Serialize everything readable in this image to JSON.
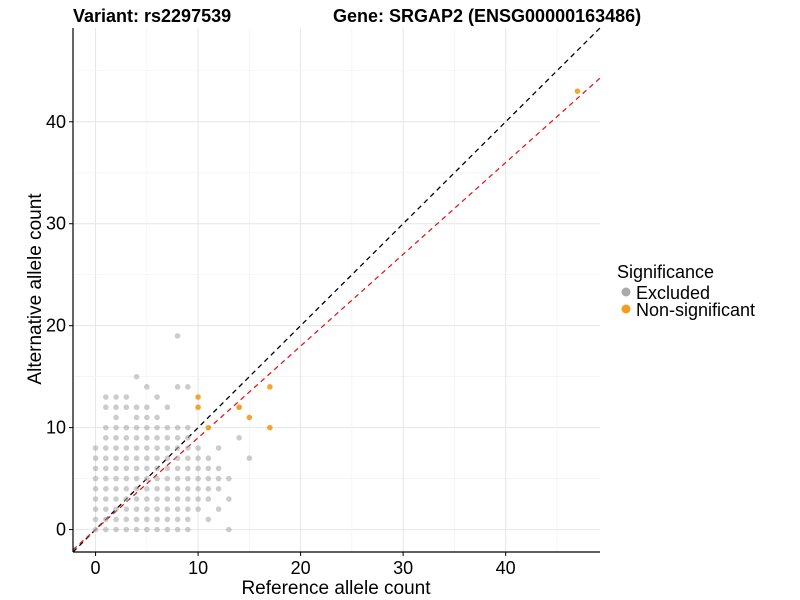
{
  "chart_data": {
    "type": "scatter",
    "title_variant": "Variant: rs2297539",
    "title_gene": "Gene: SRGAP2 (ENSG00000163486)",
    "xlabel": "Reference allele count",
    "ylabel": "Alternative allele count",
    "xlim": [
      -2.2,
      49.2
    ],
    "ylim": [
      -2.2,
      49.2
    ],
    "xticks": [
      0,
      10,
      20,
      30,
      40
    ],
    "yticks": [
      0,
      10,
      20,
      30,
      40
    ],
    "grid": true,
    "legend": {
      "title": "Significance",
      "position": "right",
      "entries": [
        {
          "label": "Excluded",
          "color": "#aaaaaa"
        },
        {
          "label": "Non-significant",
          "color": "#f39c1e"
        }
      ]
    },
    "reference_lines": [
      {
        "slope": 1.0,
        "intercept": 0,
        "color": "#000000",
        "style": "dashed"
      },
      {
        "slope": 0.9,
        "intercept": 0,
        "color": "#e41a1c",
        "style": "dashed"
      }
    ],
    "series": [
      {
        "name": "Excluded",
        "color": "#aaaaaa",
        "x": [
          0,
          0,
          0,
          0,
          0,
          0,
          0,
          0,
          0,
          1,
          1,
          1,
          1,
          1,
          1,
          1,
          1,
          1,
          1,
          1,
          1,
          1,
          2,
          2,
          2,
          2,
          2,
          2,
          2,
          2,
          2,
          2,
          2,
          2,
          2,
          2,
          3,
          3,
          3,
          3,
          3,
          3,
          3,
          3,
          3,
          3,
          3,
          3,
          3,
          4,
          4,
          4,
          4,
          4,
          4,
          4,
          4,
          4,
          4,
          4,
          4,
          4,
          4,
          5,
          5,
          5,
          5,
          5,
          5,
          5,
          5,
          5,
          5,
          5,
          5,
          5,
          5,
          6,
          6,
          6,
          6,
          6,
          6,
          6,
          6,
          6,
          6,
          6,
          6,
          6,
          7,
          7,
          7,
          7,
          7,
          7,
          7,
          7,
          7,
          7,
          7,
          7,
          8,
          8,
          8,
          8,
          8,
          8,
          8,
          8,
          8,
          8,
          8,
          8,
          8,
          9,
          9,
          9,
          9,
          9,
          9,
          9,
          9,
          9,
          9,
          9,
          9,
          10,
          10,
          10,
          10,
          10,
          10,
          10,
          11,
          11,
          11,
          11,
          11,
          11,
          12,
          12,
          12,
          12,
          12,
          13,
          13,
          13,
          14,
          14,
          15
        ],
        "y": [
          0,
          1,
          2,
          3,
          4,
          5,
          6,
          7,
          8,
          0,
          1,
          2,
          3,
          4,
          5,
          6,
          7,
          8,
          9,
          10,
          12,
          13,
          0,
          1,
          2,
          3,
          4,
          5,
          6,
          7,
          8,
          9,
          10,
          11,
          12,
          13,
          0,
          1,
          2,
          3,
          4,
          5,
          6,
          7,
          8,
          9,
          10,
          12,
          13,
          0,
          1,
          2,
          3,
          4,
          5,
          6,
          7,
          8,
          9,
          10,
          11,
          12,
          15,
          0,
          1,
          2,
          3,
          4,
          5,
          6,
          7,
          8,
          9,
          10,
          11,
          12,
          14,
          0,
          1,
          2,
          3,
          4,
          5,
          6,
          7,
          8,
          9,
          10,
          11,
          13,
          0,
          1,
          2,
          3,
          4,
          5,
          6,
          7,
          8,
          9,
          10,
          12,
          0,
          1,
          2,
          3,
          4,
          5,
          6,
          7,
          8,
          9,
          10,
          14,
          19,
          0,
          1,
          2,
          3,
          4,
          5,
          6,
          7,
          8,
          9,
          10,
          14,
          2,
          3,
          4,
          5,
          6,
          7,
          8,
          1,
          3,
          4,
          5,
          6,
          7,
          2,
          4,
          5,
          6,
          8,
          0,
          3,
          5,
          9,
          12,
          7
        ]
      },
      {
        "name": "Non-significant",
        "color": "#f39c1e",
        "x": [
          10,
          10,
          11,
          14,
          15,
          17,
          17,
          47
        ],
        "y": [
          13,
          12,
          10,
          12,
          11,
          14,
          10,
          43
        ]
      }
    ]
  }
}
